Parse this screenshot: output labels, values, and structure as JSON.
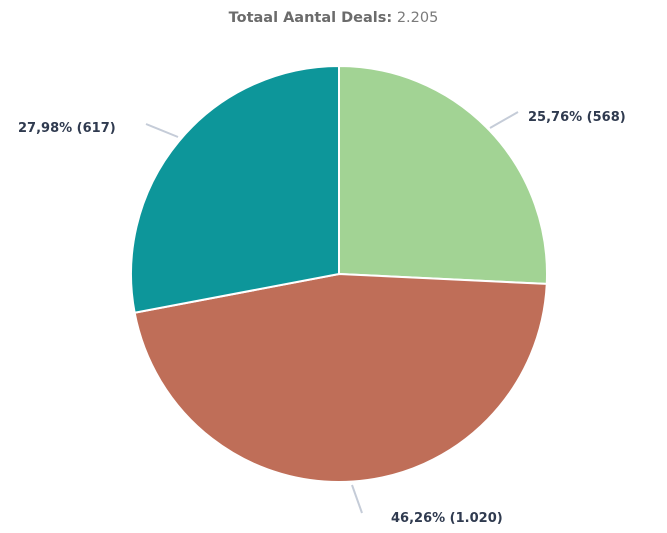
{
  "chart_data": {
    "type": "pie",
    "title": "Totaal Aantal Deals:",
    "title_value": "2.205",
    "slices": [
      {
        "value": 568,
        "percent": 25.76,
        "label": "25,76% (568)",
        "color": "#a2d394"
      },
      {
        "value": 1020,
        "percent": 46.26,
        "label": "46,26% (1.020)",
        "color": "#bf6e58"
      },
      {
        "value": 617,
        "percent": 27.98,
        "label": "27,98% (617)",
        "color": "#0d969a"
      }
    ]
  }
}
